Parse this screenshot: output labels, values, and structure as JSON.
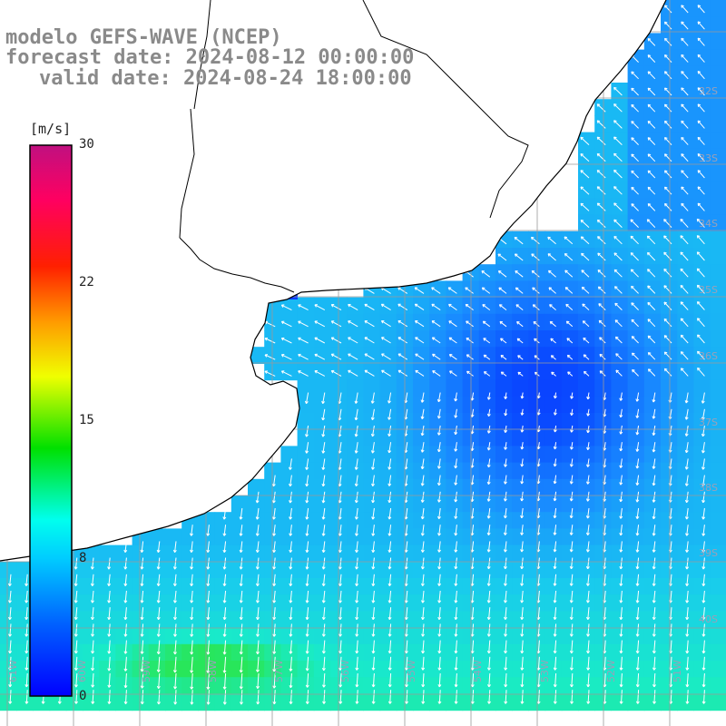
{
  "header": {
    "line1": "modelo GEFS-WAVE (NCEP)",
    "line2": "forecast date: 2024-08-12 00:00:00",
    "line3": "valid date: 2024-08-24 18:00:00"
  },
  "colorbar": {
    "unit": "[m/s]",
    "ticks": [
      {
        "label": "30",
        "value": 30
      },
      {
        "label": "22",
        "value": 22
      },
      {
        "label": "15",
        "value": 15
      },
      {
        "label": "8",
        "value": 8
      },
      {
        "label": "0",
        "value": 0
      }
    ]
  },
  "grid": {
    "lat_labels": [
      "32S",
      "33S",
      "34S",
      "35S",
      "36S",
      "37S",
      "38S",
      "39S",
      "40S"
    ],
    "lon_labels": [
      "61W",
      "60W",
      "59W",
      "58W",
      "57W",
      "56W",
      "55W",
      "54W",
      "53W",
      "52W",
      "51W"
    ]
  },
  "colors": {
    "land": "#ffffff",
    "coast": "#000000",
    "gridline": "#9a9a9a",
    "arrow": "#ffffff",
    "ocean_low": "#0a2bff",
    "ocean_mid": "#1a8cff",
    "ocean_high": "#19e6e0",
    "header_text": "#8a8a8a"
  },
  "field": {
    "variable": "wind speed",
    "units": "m/s"
  }
}
